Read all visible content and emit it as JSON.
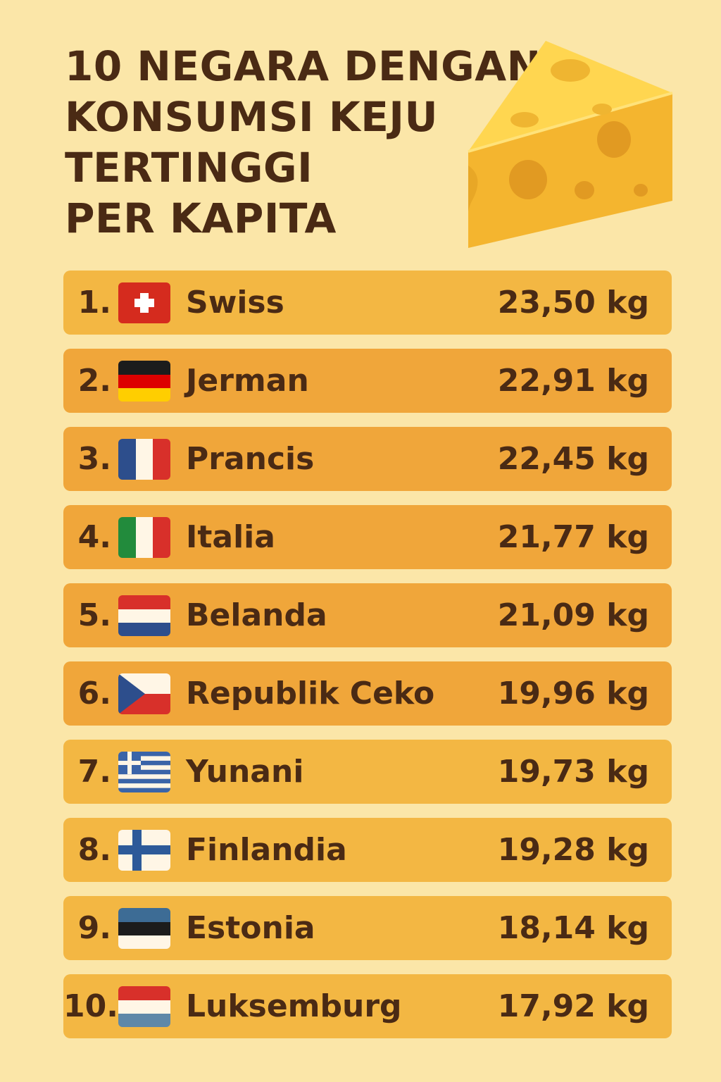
{
  "title": {
    "lines": [
      "10 NEGARA DENGAN",
      "KONSUMSI KEJU",
      "TERTINGGI",
      "PER KAPITA"
    ]
  },
  "colors": {
    "background": "#fbe6a8",
    "text": "#4a2a14",
    "row_odd": "#f3b743",
    "row_even": "#f0a63a"
  },
  "rows": [
    {
      "rank": "1.",
      "country": "Swiss",
      "value": "23,50 kg",
      "flag": "switzerland-flag"
    },
    {
      "rank": "2.",
      "country": "Jerman",
      "value": "22,91 kg",
      "flag": "germany-flag"
    },
    {
      "rank": "3.",
      "country": "Prancis",
      "value": "22,45 kg",
      "flag": "france-flag"
    },
    {
      "rank": "4.",
      "country": "Italia",
      "value": "21,77 kg",
      "flag": "italy-flag"
    },
    {
      "rank": "5.",
      "country": "Belanda",
      "value": "21,09 kg",
      "flag": "netherlands-flag"
    },
    {
      "rank": "6.",
      "country": "Republik Ceko",
      "value": "19,96 kg",
      "flag": "czech-flag"
    },
    {
      "rank": "7.",
      "country": "Yunani",
      "value": "19,73 kg",
      "flag": "greece-flag"
    },
    {
      "rank": "8.",
      "country": "Finlandia",
      "value": "19,28 kg",
      "flag": "finland-flag"
    },
    {
      "rank": "9.",
      "country": "Estonia",
      "value": "18,14 kg",
      "flag": "estonia-flag"
    },
    {
      "rank": "10.",
      "country": "Luksemburg",
      "value": "17,92 kg",
      "flag": "luxembourg-flag"
    }
  ]
}
